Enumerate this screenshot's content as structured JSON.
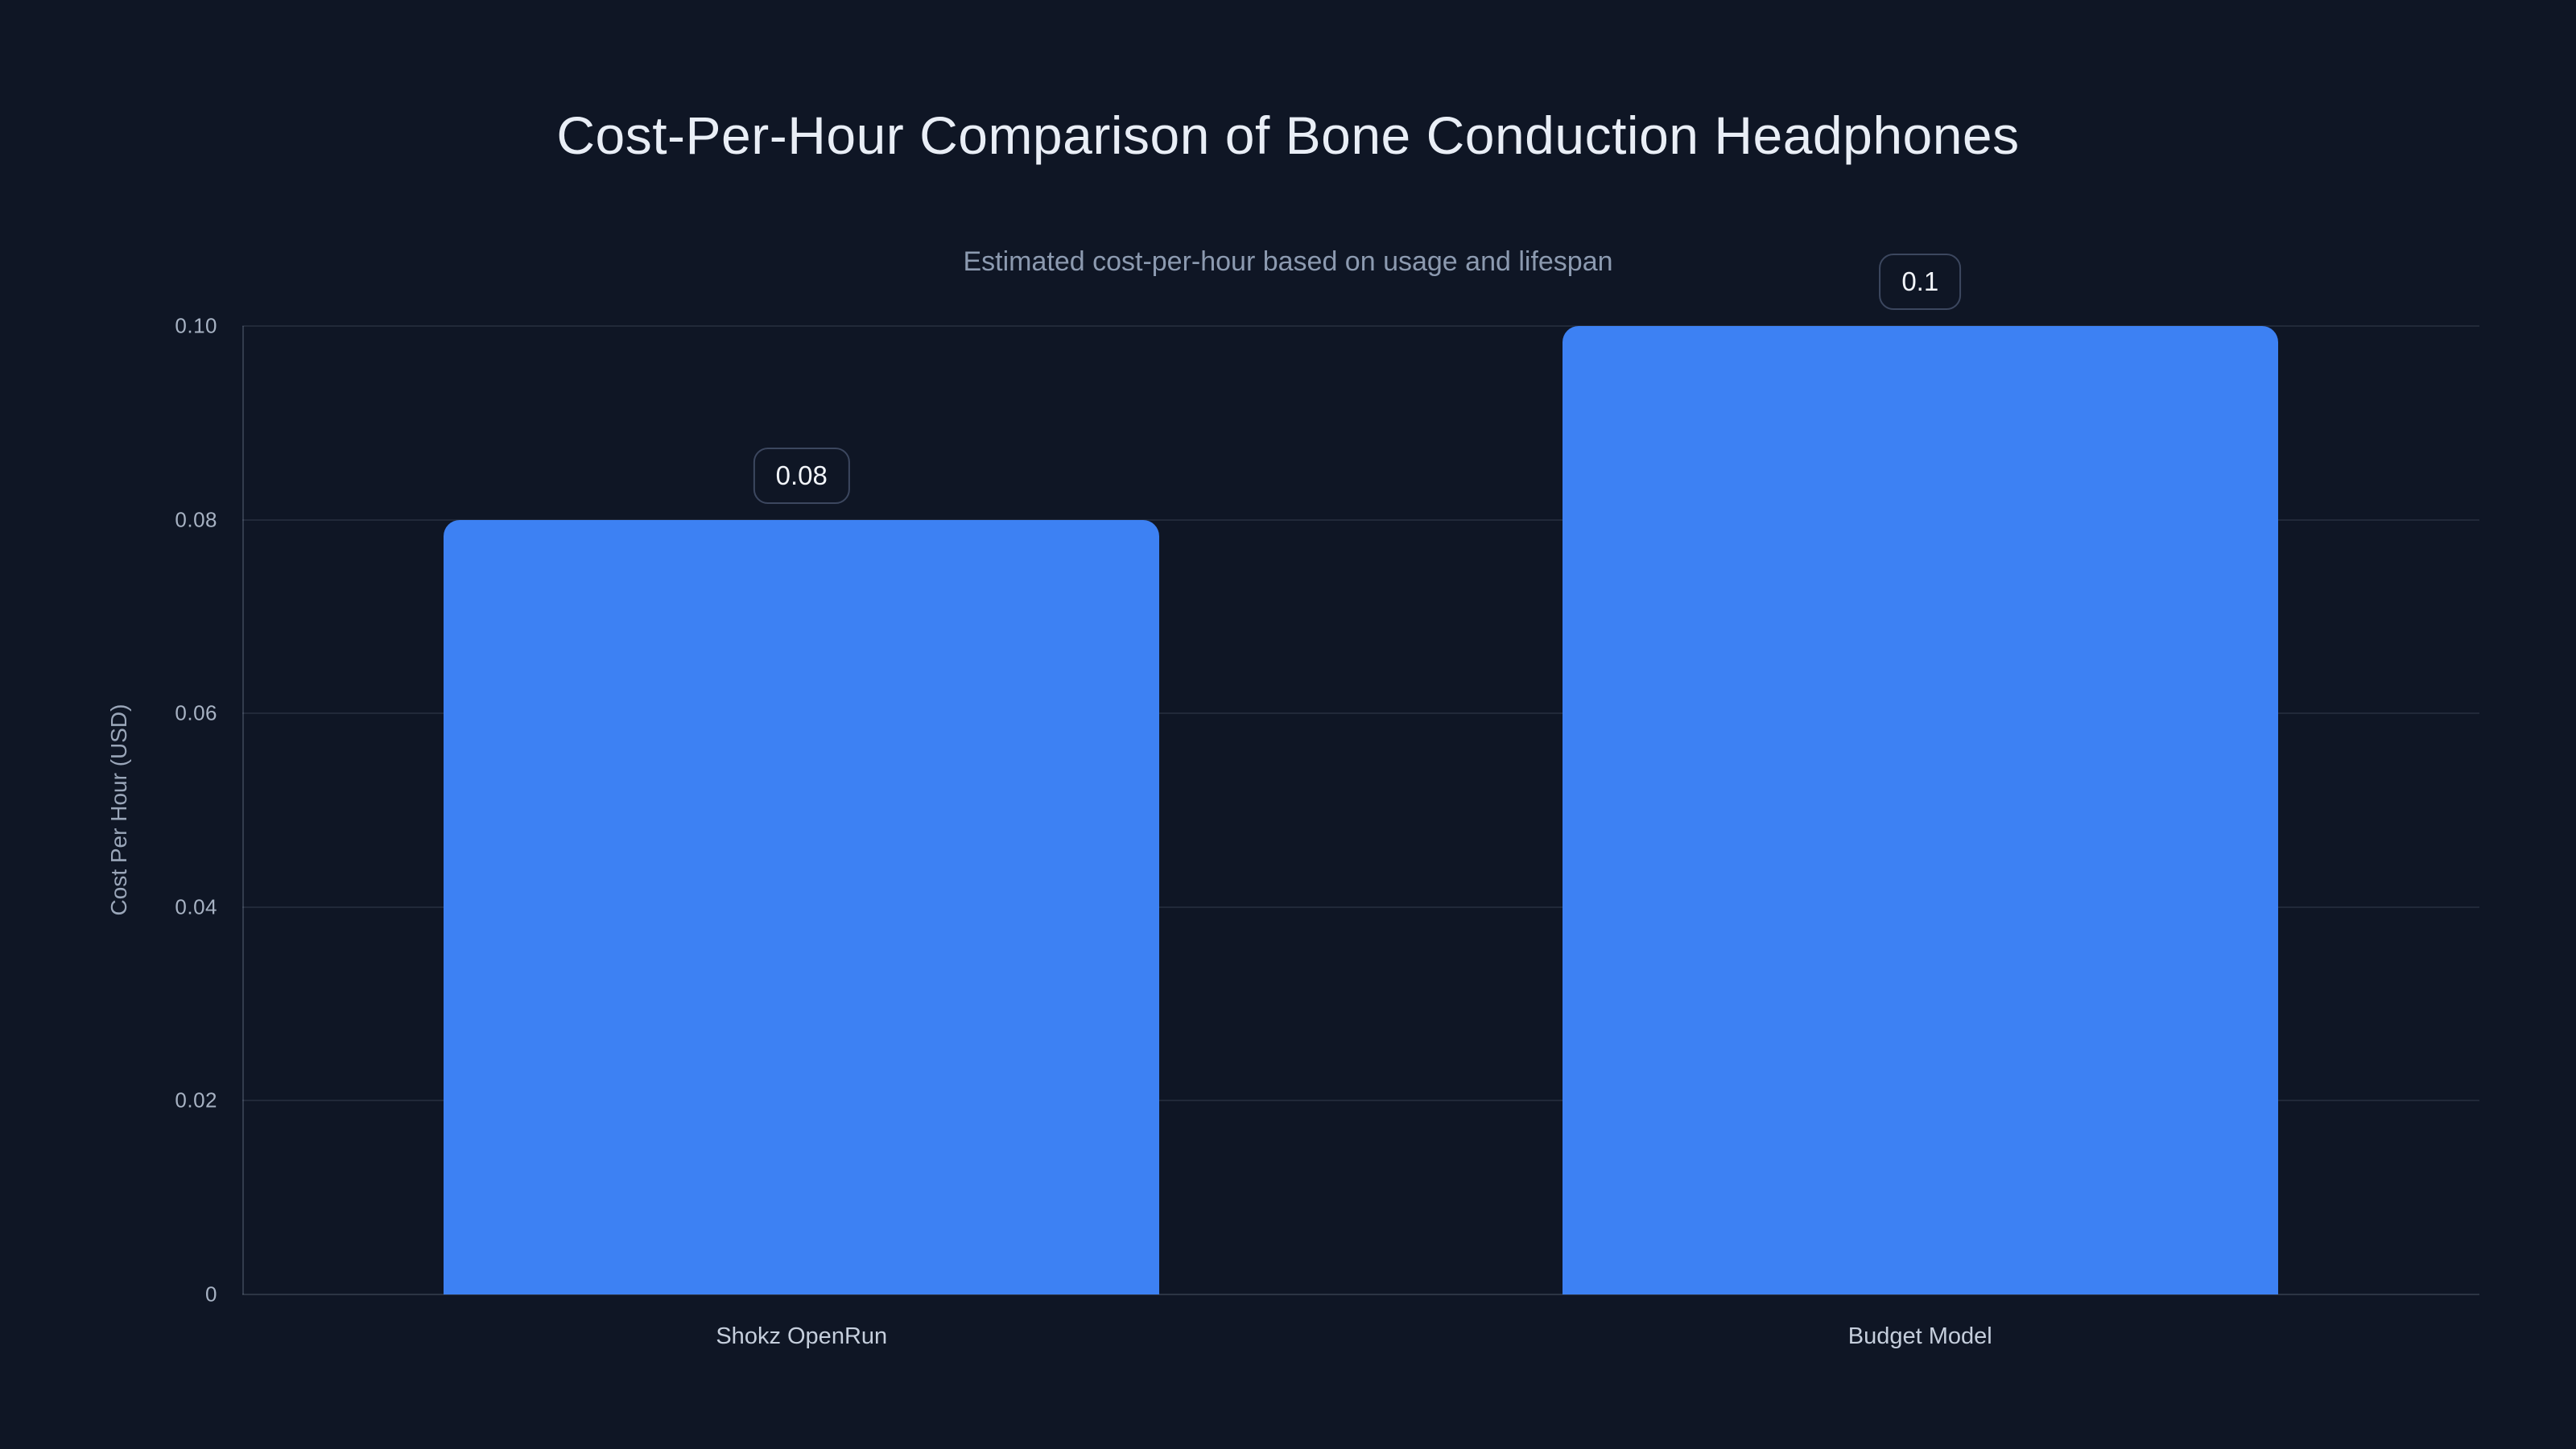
{
  "chart_data": {
    "type": "bar",
    "title": "Cost-Per-Hour Comparison of Bone Conduction Headphones",
    "subtitle": "Estimated cost-per-hour based on usage and lifespan",
    "categories": [
      "Shokz OpenRun",
      "Budget Model"
    ],
    "values": [
      0.08,
      0.1
    ],
    "value_labels": [
      "0.08",
      "0.1"
    ],
    "xlabel": "",
    "ylabel": "Cost Per Hour (USD)",
    "ylim": [
      0,
      0.1
    ],
    "yticks": [
      0,
      0.02,
      0.04,
      0.06,
      0.08,
      0.1
    ],
    "ytick_labels": [
      "0",
      "0.02",
      "0.04",
      "0.06",
      "0.08",
      "0.10"
    ],
    "grid": true,
    "legend": false,
    "colors": {
      "background": "#0f1625",
      "bar": "#3d81f3",
      "title": "#e9eef6",
      "subtitle": "#8c9ab0",
      "tick_text": "#a7b2c3",
      "category_text": "#c5cedc",
      "axis_label": "#9aa6b9",
      "gridline": "rgba(148,163,184,0.14)",
      "value_box_border": "#3c475f",
      "value_text": "#f2f5fa"
    }
  }
}
